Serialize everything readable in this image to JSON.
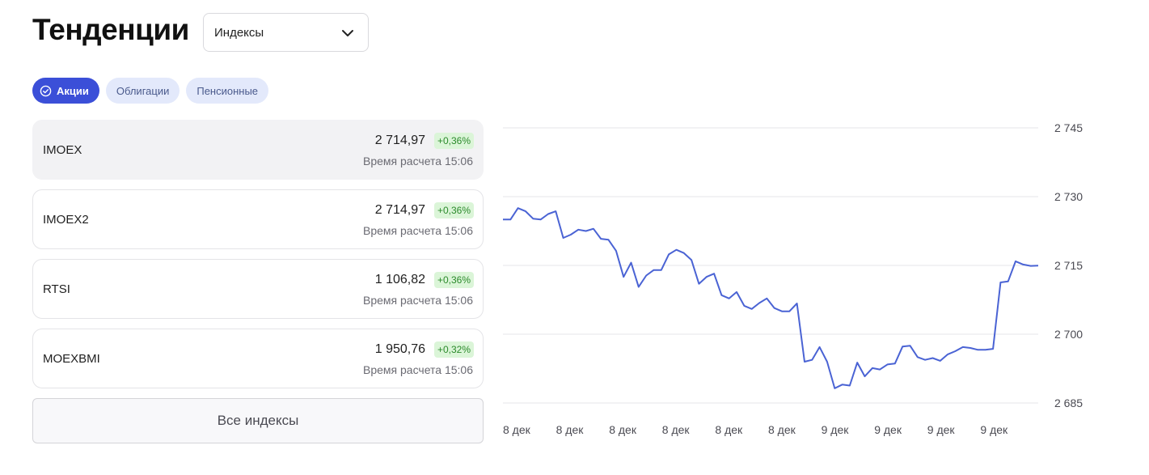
{
  "header": {
    "title": "Тенденции",
    "select_value": "Индексы"
  },
  "tabs": [
    {
      "label": "Акции",
      "active": true
    },
    {
      "label": "Облигации",
      "active": false
    },
    {
      "label": "Пенсионные",
      "active": false
    }
  ],
  "indices": [
    {
      "name": "IMOEX",
      "value": "2 714,97",
      "change": "+0,36%",
      "time": "Время расчета 15:06",
      "selected": true
    },
    {
      "name": "IMOEX2",
      "value": "2 714,97",
      "change": "+0,36%",
      "time": "Время расчета 15:06",
      "selected": false
    },
    {
      "name": "RTSI",
      "value": "1 106,82",
      "change": "+0,36%",
      "time": "Время расчета 15:06",
      "selected": false
    },
    {
      "name": "MOEXBMI",
      "value": "1 950,76",
      "change": "+0,32%",
      "time": "Время расчета 15:06",
      "selected": false
    }
  ],
  "all_button_label": "Все индексы",
  "colors": {
    "accent": "#3b4fd8",
    "line": "#4a63d4",
    "positive_bg": "#dbf5d8",
    "positive_text": "#2b8a2b"
  },
  "icons": {
    "select": "chevron-down-icon",
    "active_tab": "check-circle-icon"
  },
  "chart_data": {
    "type": "line",
    "ylim": [
      2685,
      2745
    ],
    "yticks": [
      2745,
      2730,
      2715,
      2700,
      2685
    ],
    "ytick_labels": [
      "2 745",
      "2 730",
      "2 715",
      "2 700",
      "2 685"
    ],
    "xtick_labels": [
      "8 дек",
      "8 дек",
      "8 дек",
      "8 дек",
      "8 дек",
      "8 дек",
      "9 дек",
      "9 дек",
      "9 дек",
      "9 дек"
    ],
    "grid": true,
    "series": [
      {
        "values": [
          2725.0,
          2725.0,
          2727.5,
          2726.8,
          2725.2,
          2725.0,
          2726.2,
          2726.8,
          2721.0,
          2721.7,
          2722.8,
          2722.5,
          2723.0,
          2720.8,
          2720.6,
          2718.2,
          2712.5,
          2715.6,
          2710.3,
          2712.8,
          2714.0,
          2714.0,
          2717.4,
          2718.4,
          2717.7,
          2716.2,
          2711.0,
          2712.5,
          2713.2,
          2708.5,
          2707.8,
          2709.2,
          2706.2,
          2705.5,
          2706.8,
          2707.8,
          2705.7,
          2705.0,
          2705.0,
          2706.7,
          2694.0,
          2694.4,
          2697.2,
          2694.0,
          2688.2,
          2689.0,
          2688.8,
          2693.8,
          2690.8,
          2692.6,
          2692.3,
          2693.4,
          2693.6,
          2697.3,
          2697.5,
          2695.0,
          2694.4,
          2694.8,
          2694.2,
          2695.6,
          2696.3,
          2697.2,
          2697.0,
          2696.6,
          2696.6,
          2696.8,
          2711.3,
          2711.5,
          2715.9,
          2715.2,
          2714.9,
          2714.97
        ]
      }
    ]
  }
}
